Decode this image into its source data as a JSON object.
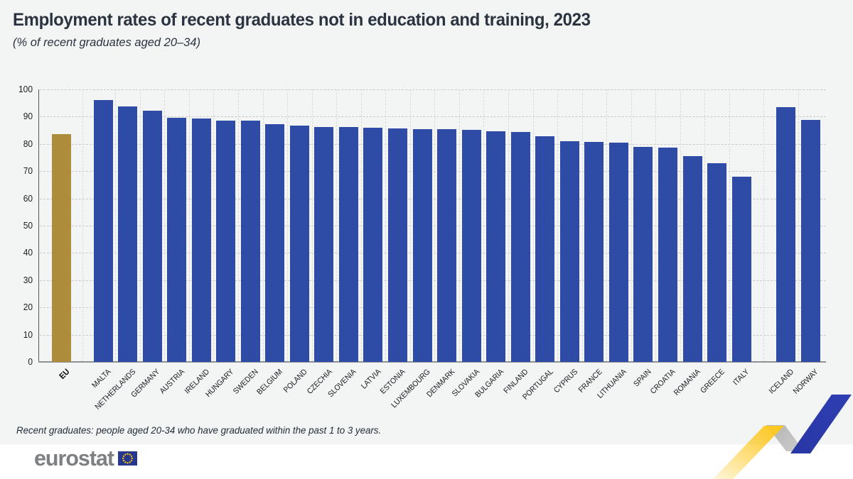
{
  "header": {
    "title": "Employment rates of recent graduates not in education and training, 2023",
    "subtitle": "(% of recent graduates aged 20–34)"
  },
  "footnote": "Recent graduates: people aged 20-34 who have graduated within the past 1 to 3 years.",
  "logo": {
    "brand": "eurostat",
    "flag_icon": "eu-flag-icon"
  },
  "colors": {
    "background": "#f3f4f4",
    "eu_bar": "#ad8d3b",
    "country_bar": "#2e4ca6",
    "gridline": "#c9c9c9",
    "title_text": "#2a3340",
    "accent_yellow": "#fdc821",
    "accent_blue": "#2a38a8",
    "accent_gray": "#b5b5b5",
    "logo_gray": "#7d8083",
    "flag_blue": "#27398f",
    "flag_star_yellow": "#ffcc00"
  },
  "chart_data": {
    "type": "bar",
    "title": "Employment rates of recent graduates not in education and training, 2023",
    "subtitle": "(% of recent graduates aged 20–34)",
    "unit": "%",
    "ylim": [
      0,
      100
    ],
    "yticks": [
      0,
      10,
      20,
      30,
      40,
      50,
      60,
      70,
      80,
      90,
      100
    ],
    "grid": true,
    "legend_position": "none",
    "highlight_category": "EU",
    "gap_after": [
      "EU",
      "ITALY"
    ],
    "categories": [
      "EU",
      "MALTA",
      "NETHERLANDS",
      "GERMANY",
      "AUSTRIA",
      "IRELAND",
      "HUNGARY",
      "SWEDEN",
      "BELGIUM",
      "POLAND",
      "CZECHIA",
      "SLOVENIA",
      "LATVIA",
      "ESTONIA",
      "LUXEMBOURG",
      "DENMARK",
      "SLOVAKIA",
      "BULGARIA",
      "FINLAND",
      "PORTUGAL",
      "CYPRUS",
      "FRANCE",
      "LITHUANIA",
      "SPAIN",
      "CROATIA",
      "ROMANIA",
      "GREECE",
      "ITALY",
      "ICELAND",
      "NORWAY"
    ],
    "values": [
      83.5,
      96.2,
      93.7,
      92.2,
      89.7,
      89.4,
      88.6,
      88.5,
      87.2,
      86.6,
      86.2,
      86.1,
      85.9,
      85.6,
      85.5,
      85.3,
      85.1,
      84.7,
      84.4,
      82.9,
      81.0,
      80.6,
      80.4,
      79.0,
      78.7,
      75.4,
      72.8,
      67.9,
      93.4,
      88.8
    ]
  }
}
